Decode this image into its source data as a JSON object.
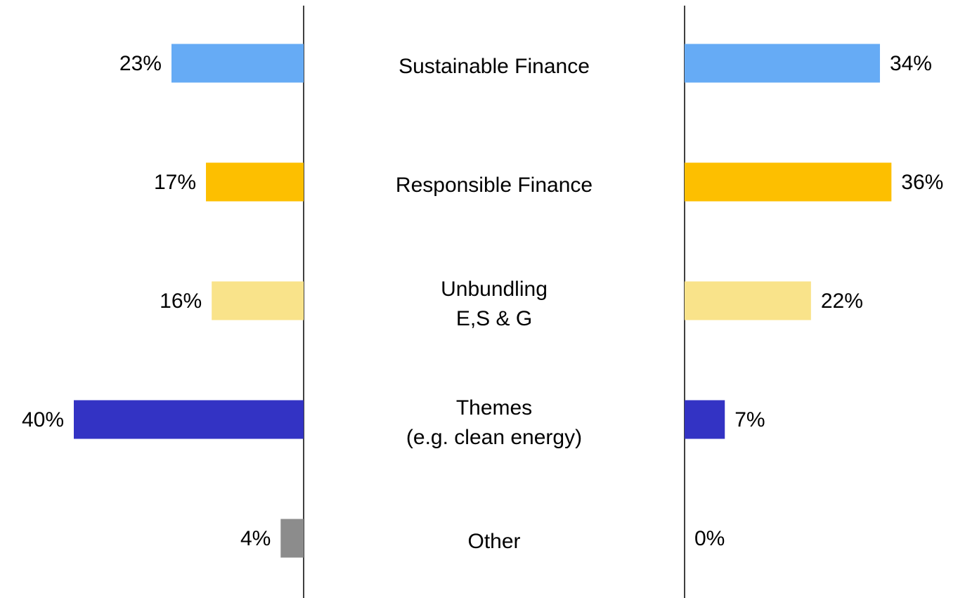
{
  "chart_data": {
    "type": "bar",
    "categories": [
      "Sustainable Finance",
      "Responsible Finance",
      "Unbundling\nE,S & G",
      "Themes\n(e.g. clean energy)",
      "Other"
    ],
    "colors": [
      "#66abf5",
      "#fdbf00",
      "#f9e38a",
      "#3333c4",
      "#8c8c8c"
    ],
    "series": [
      {
        "values": [
          23,
          17,
          16,
          40,
          4
        ],
        "value_labels": [
          "23%",
          "17%",
          "16%",
          "40%",
          "4%"
        ]
      },
      {
        "values": [
          34,
          36,
          22,
          7,
          0
        ],
        "value_labels": [
          "34%",
          "36%",
          "22%",
          "7%",
          "0%"
        ]
      }
    ]
  }
}
